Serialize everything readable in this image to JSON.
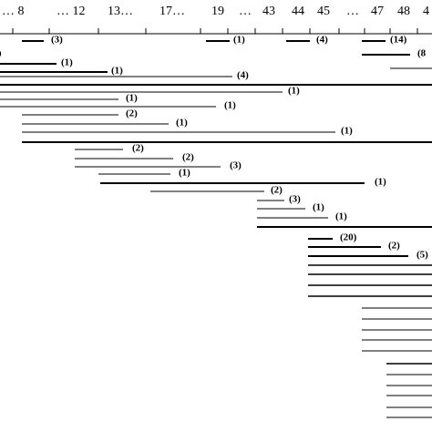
{
  "axis_labels": [
    "… 8",
    "… 12",
    "13…",
    "17…",
    "19",
    "…",
    "43",
    "44",
    "45",
    "…",
    "47",
    "48",
    "4"
  ],
  "interval_labels": [
    "(3)",
    "(1)",
    "(4)",
    "(14)",
    "(8",
    "(1)",
    "(1)",
    "(4)",
    "(1)",
    "(1)",
    "(1)",
    "(2)",
    "(1)",
    "(1)",
    "(2)",
    "(2)",
    "(3)",
    "(1)",
    "(1)",
    "(2)",
    "(3)",
    "(1)",
    "(1)",
    "(20)",
    "(2)",
    "(5)"
  ],
  "edge_label": "0"
}
